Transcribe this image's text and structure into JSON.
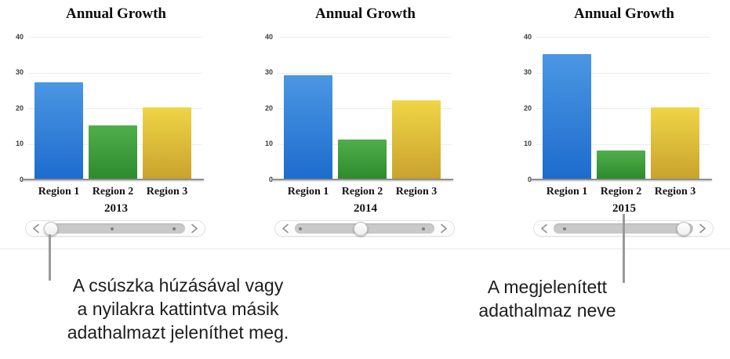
{
  "page": {
    "background": "#ffffff"
  },
  "colors": {
    "series": [
      {
        "name": "blue",
        "top": "#4b97e3",
        "bottom": "#1d6ccd"
      },
      {
        "name": "green",
        "top": "#50ae4b",
        "bottom": "#2e8b2d"
      },
      {
        "name": "yellow",
        "top": "#f0d546",
        "bottom": "#c9a32e"
      }
    ],
    "gridline": "#ededed",
    "axis_line": "#8f8f8f",
    "callout_line": "#9a9a9a",
    "annotation_text": "#1d1d1d"
  },
  "chart_data": [
    {
      "type": "bar",
      "title": "Annual Growth",
      "categories": [
        "Region 1",
        "Region 2",
        "Region 3"
      ],
      "values": [
        27,
        15,
        20
      ],
      "x_axis_title": "2013",
      "ylim": [
        0,
        40
      ],
      "yticks": [
        "0",
        "10",
        "20",
        "30",
        "40"
      ],
      "grid": true,
      "legend": false,
      "slider": {
        "thumb_pct": 4,
        "dot_pcts": [
          48,
          92
        ]
      }
    },
    {
      "type": "bar",
      "title": "Annual Growth",
      "categories": [
        "Region 1",
        "Region 2",
        "Region 3"
      ],
      "values": [
        29,
        11,
        22
      ],
      "x_axis_title": "2014",
      "ylim": [
        0,
        40
      ],
      "yticks": [
        "0",
        "10",
        "20",
        "30",
        "40"
      ],
      "grid": true,
      "legend": false,
      "slider": {
        "thumb_pct": 47,
        "dot_pcts": [
          4,
          92
        ]
      }
    },
    {
      "type": "bar",
      "title": "Annual Growth",
      "categories": [
        "Region 1",
        "Region 2",
        "Region 3"
      ],
      "values": [
        35,
        8,
        20
      ],
      "x_axis_title": "2015",
      "ylim": [
        0,
        40
      ],
      "yticks": [
        "0",
        "10",
        "20",
        "30",
        "40"
      ],
      "grid": true,
      "legend": false,
      "slider": {
        "thumb_pct": 93,
        "dot_pcts": [
          8
        ]
      }
    }
  ],
  "annotations": {
    "slider_note": {
      "lines": [
        "A csúszka húzásával vagy",
        "a nyilakra kattintva másik",
        "adathalmazt jeleníthet meg."
      ]
    },
    "dataset_note": {
      "lines": [
        "A megjelenített",
        "adathalmaz neve"
      ]
    }
  }
}
